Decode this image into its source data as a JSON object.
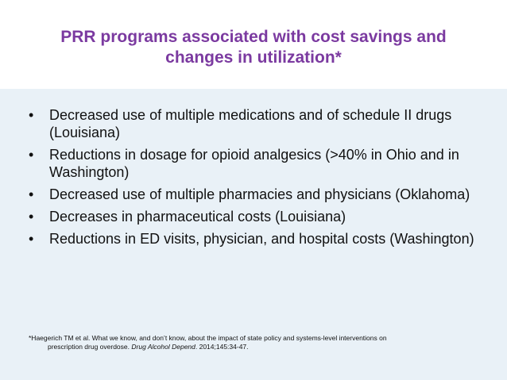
{
  "slide": {
    "title": "PRR programs associated with cost savings and changes in utilization*",
    "title_line1": "PRR programs associated with cost savings and",
    "title_line2": "changes in utilization*",
    "bullet_glyph": "•",
    "bullets": [
      "Decreased use of multiple medications and of schedule II drugs (Louisiana)",
      "Reductions in dosage for opioid analgesics (>40% in Ohio and in Washington)",
      "Decreased use of multiple pharmacies and physicians (Oklahoma)",
      "Decreases in pharmaceutical costs (Louisiana)",
      "Reductions in ED visits, physician, and hospital costs (Washington)"
    ],
    "footnote": {
      "part1": "*Haegerich TM et al. What we know, and don’t know, about the impact of state policy and systems-level interventions on",
      "part2": "prescription drug overdose.",
      "journal": "Drug Alcohol Depend",
      "part3": ". 2014;145:34-47."
    }
  },
  "colors": {
    "title": "#7b3aa0",
    "slide_background": "#e9f1f7",
    "title_background": "#ffffff",
    "text": "#111111"
  }
}
